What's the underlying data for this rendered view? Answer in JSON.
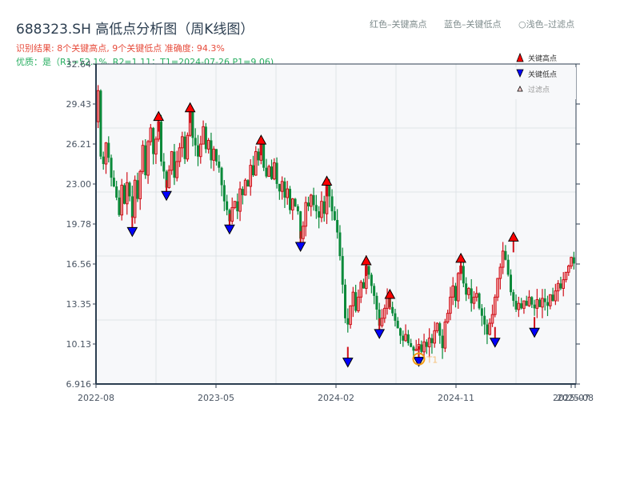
{
  "header": {
    "title": "688323.SH 高低点分析图（周K线图）",
    "result_line": "识别结果: 8个关键高点, 9个关键低点  准确度: 94.3%",
    "quality_line": "优质：是（R1=52.1%, R2=1.11；T1=2024-07-26 P1=9.06)"
  },
  "top_legend": {
    "red": "红色–关键高点",
    "blue": "蓝色–关键低点",
    "light": "○浅色–过滤点"
  },
  "colors": {
    "up": "#d0101a",
    "down": "#0a8a3a",
    "high_marker": "#ff0000",
    "low_marker": "#0000ff",
    "t1_ring": "#f39c12",
    "plot_bg": "#f7f8fa",
    "grid": "#dfe3e8",
    "axis": "#2c3e50"
  },
  "chart_data": {
    "type": "candlestick",
    "title": "688323.SH 高低点分析图（周K线图）",
    "xlabel": "",
    "ylabel": "",
    "ylim": [
      6.916,
      32.64
    ],
    "y_ticks": [
      "32.64",
      "29.43",
      "26.21",
      "23.00",
      "19.78",
      "16.56",
      "13.35",
      "10.13",
      "6.916"
    ],
    "x_ticks": [
      "2022-08",
      "2023-05",
      "2024-02",
      "2024-11",
      "2025-07",
      "2025-08"
    ],
    "grid": true,
    "legend": {
      "position": "top-right",
      "entries": [
        "关键高点",
        "关键低点",
        "过滤点"
      ]
    },
    "annotation": {
      "label": "T1",
      "date": "2024-07-26",
      "price": 9.06
    },
    "closes": [
      30.5,
      25.2,
      24.6,
      26.3,
      25.1,
      23.5,
      22.8,
      21.9,
      20.5,
      22.9,
      21.4,
      23.1,
      22.0,
      20.3,
      23.3,
      21.8,
      24.0,
      26.1,
      23.7,
      26.4,
      27.5,
      25.4,
      26.6,
      28.0,
      24.8,
      24.0,
      22.7,
      24.1,
      25.6,
      23.5,
      24.8,
      25.9,
      26.8,
      25.0,
      26.9,
      28.8,
      26.7,
      26.1,
      25.2,
      26.2,
      27.6,
      25.8,
      26.5,
      24.9,
      25.8,
      24.8,
      24.3,
      22.9,
      21.6,
      20.9,
      20.0,
      21.1,
      21.6,
      20.8,
      22.6,
      22.1,
      23.3,
      22.8,
      24.5,
      23.7,
      25.6,
      24.9,
      26.2,
      24.3,
      23.6,
      24.4,
      23.4,
      24.7,
      23.0,
      22.4,
      23.2,
      21.9,
      22.6,
      20.9,
      21.8,
      21.2,
      20.8,
      18.6,
      19.6,
      21.5,
      21.2,
      22.1,
      21.3,
      20.8,
      20.3,
      21.6,
      20.6,
      22.9,
      22.0,
      20.8,
      20.1,
      19.1,
      17.2,
      14.9,
      12.2,
      11.7,
      13.2,
      14.3,
      12.8,
      13.9,
      15.1,
      14.6,
      16.4,
      15.7,
      14.8,
      14.0,
      12.9,
      11.6,
      12.2,
      13.0,
      13.8,
      13.1,
      12.6,
      12.0,
      11.4,
      10.8,
      10.4,
      10.9,
      10.2,
      9.9,
      9.6,
      9.7,
      10.1,
      9.5,
      10.3,
      9.9,
      10.6,
      10.2,
      11.2,
      11.8,
      10.8,
      9.8,
      11.9,
      12.6,
      13.9,
      14.8,
      13.6,
      15.8,
      16.4,
      15.0,
      14.1,
      14.6,
      13.4,
      13.9,
      14.2,
      13.0,
      12.4,
      11.7,
      10.9,
      11.8,
      12.5,
      13.9,
      15.4,
      16.3,
      17.6,
      16.9,
      15.7,
      14.3,
      13.6,
      12.9,
      13.4,
      13.0,
      13.6,
      13.2,
      13.9,
      13.3,
      13.0,
      13.7,
      13.1,
      13.8,
      13.5,
      13.2,
      14.1,
      13.6,
      14.4,
      15.0,
      14.6,
      15.3,
      15.9,
      16.4,
      17.1,
      16.6
    ],
    "key_highs": [
      {
        "index": 23,
        "price": 28.1
      },
      {
        "index": 35,
        "price": 28.8
      },
      {
        "index": 62,
        "price": 26.2
      },
      {
        "index": 87,
        "price": 22.9
      },
      {
        "index": 102,
        "price": 16.5
      },
      {
        "index": 111,
        "price": 13.8
      },
      {
        "index": 138,
        "price": 16.7
      },
      {
        "index": 158,
        "price": 18.4
      }
    ],
    "key_lows": [
      {
        "index": 13,
        "price": 19.5
      },
      {
        "index": 26,
        "price": 22.4
      },
      {
        "index": 50,
        "price": 19.7
      },
      {
        "index": 77,
        "price": 18.3
      },
      {
        "index": 95,
        "price": 9.0
      },
      {
        "index": 107,
        "price": 11.3
      },
      {
        "index": 122,
        "price": 9.06
      },
      {
        "index": 151,
        "price": 10.6
      },
      {
        "index": 166,
        "price": 11.4
      }
    ]
  }
}
